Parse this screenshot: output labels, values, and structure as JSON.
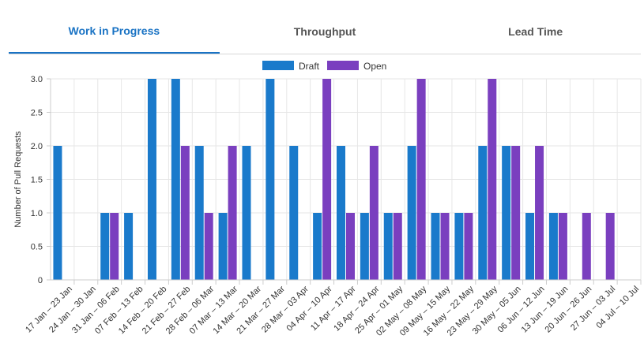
{
  "tabs": [
    {
      "label": "Work in Progress",
      "active": true
    },
    {
      "label": "Throughput",
      "active": false
    },
    {
      "label": "Lead Time",
      "active": false
    }
  ],
  "chart_data": {
    "type": "bar",
    "categories": [
      "17 Jan – 23 Jan",
      "24 Jan – 30 Jan",
      "31 Jan – 06 Feb",
      "07 Feb – 13 Feb",
      "14 Feb – 20 Feb",
      "21 Feb – 27 Feb",
      "28 Feb – 06 Mar",
      "07 Mar – 13 Mar",
      "14 Mar – 20 Mar",
      "21 Mar – 27 Mar",
      "28 Mar – 03 Apr",
      "04 Apr – 10 Apr",
      "11 Apr – 17 Apr",
      "18 Apr – 24 Apr",
      "25 Apr – 01 May",
      "02 May – 08 May",
      "09 May – 15 May",
      "16 May – 22 May",
      "23 May – 29 May",
      "30 May – 05 Jun",
      "06 Jun – 12 Jun",
      "13 Jun – 19 Jun",
      "20 Jun – 26 Jun",
      "27 Jun – 03 Jul",
      "04 Jul – 10 Jul"
    ],
    "series": [
      {
        "name": "Draft",
        "color": "#1a7acb",
        "values": [
          2,
          0,
          1,
          1,
          3,
          3,
          2,
          1,
          2,
          3,
          2,
          1,
          2,
          1,
          1,
          2,
          1,
          1,
          2,
          2,
          1,
          1,
          0,
          0,
          0
        ]
      },
      {
        "name": "Open",
        "color": "#7a3fbf",
        "values": [
          0,
          0,
          1,
          0,
          0,
          2,
          1,
          2,
          0,
          0,
          0,
          3,
          1,
          2,
          1,
          3,
          1,
          1,
          3,
          2,
          2,
          1,
          1,
          1,
          0
        ]
      }
    ],
    "ylabel": "Number of Pull Requests",
    "ylim": [
      0,
      3
    ],
    "yticks": [
      "0",
      "0.5",
      "1.0",
      "1.5",
      "2.0",
      "2.5",
      "3.0"
    ],
    "grid": true,
    "legend": "top-center"
  }
}
